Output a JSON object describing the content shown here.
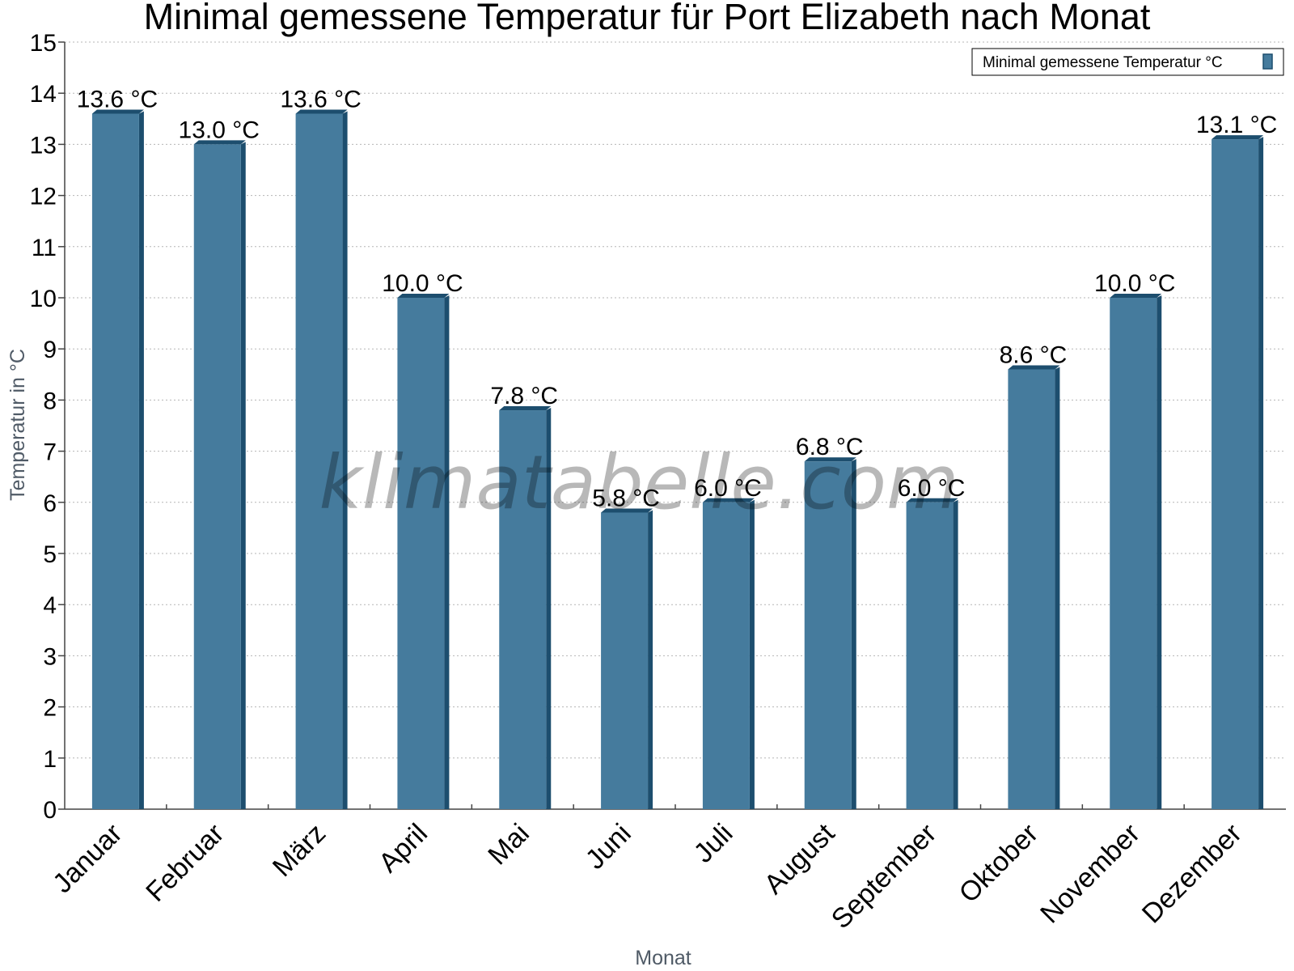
{
  "chart_data": {
    "type": "bar",
    "title": "Minimal gemessene Temperatur für Port Elizabeth nach Monat",
    "xlabel": "Monat",
    "ylabel": "Temperatur in °C",
    "ylim": [
      0,
      15
    ],
    "yticks": [
      "0",
      "1",
      "2",
      "3",
      "4",
      "5",
      "6",
      "7",
      "8",
      "9",
      "10",
      "11",
      "12",
      "13",
      "14",
      "15"
    ],
    "grid": true,
    "legend_position": "top-right",
    "categories": [
      "Januar",
      "Februar",
      "März",
      "April",
      "Mai",
      "Juni",
      "Juli",
      "August",
      "September",
      "Oktober",
      "November",
      "Dezember"
    ],
    "series": [
      {
        "name": "Minimal gemessene Temperatur °C",
        "values": [
          13.6,
          13.0,
          13.6,
          10.0,
          7.8,
          5.8,
          6.0,
          6.8,
          6.0,
          8.6,
          10.0,
          13.1
        ],
        "labels": [
          "13.6 °C",
          "13.0 °C",
          "13.6 °C",
          "10.0 °C",
          "7.8 °C",
          "5.8 °C",
          "6.0 °C",
          "6.8 °C",
          "6.0 °C",
          "8.6 °C",
          "10.0 °C",
          "13.1 °C"
        ],
        "color": "#457b9d",
        "edge_color": "#1d4e6e"
      }
    ],
    "watermark": "klimatabelle.com"
  }
}
